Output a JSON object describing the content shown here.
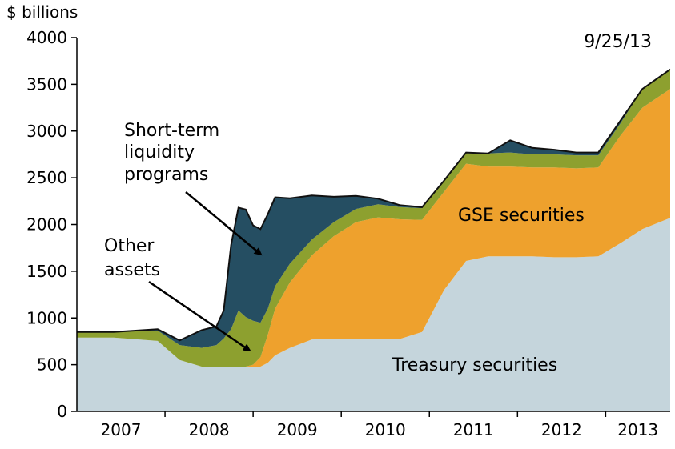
{
  "chart_data": {
    "type": "area",
    "unit_label": "$ billions",
    "date_stamp": "9/25/13",
    "ylim": [
      0,
      4000
    ],
    "yticks": [
      "0",
      "500",
      "1000",
      "1500",
      "2000",
      "2500",
      "3000",
      "3500",
      "4000"
    ],
    "x_labels": [
      "2007",
      "2008",
      "2009",
      "2010",
      "2011",
      "2012",
      "2013"
    ],
    "xlim": [
      "2007-01",
      "2013-09-25"
    ],
    "x": [
      "2007-01",
      "2007-06",
      "2007-12",
      "2008-03",
      "2008-06",
      "2008-08",
      "2008-09",
      "2008-10",
      "2008-11",
      "2008-12",
      "2009-01",
      "2009-02",
      "2009-03",
      "2009-04",
      "2009-06",
      "2009-09",
      "2009-12",
      "2010-03",
      "2010-06",
      "2010-09",
      "2010-12",
      "2011-03",
      "2011-06",
      "2011-09",
      "2011-12",
      "2012-03",
      "2012-06",
      "2012-09",
      "2012-12",
      "2013-03",
      "2013-06",
      "2013-09-25"
    ],
    "series": [
      {
        "name": "Treasury securities",
        "color": "#c5d5dc",
        "values": [
          790,
          790,
          755,
          550,
          480,
          480,
          480,
          480,
          480,
          480,
          480,
          480,
          520,
          600,
          680,
          770,
          776,
          776,
          776,
          776,
          850,
          1300,
          1610,
          1660,
          1660,
          1660,
          1650,
          1650,
          1660,
          1800,
          1950,
          2070
        ]
      },
      {
        "name": "GSE securities",
        "color": "#eea12d",
        "values": [
          0,
          0,
          0,
          0,
          0,
          0,
          0,
          0,
          0,
          0,
          20,
          100,
          300,
          500,
          700,
          900,
          1100,
          1250,
          1300,
          1280,
          1200,
          1050,
          1040,
          960,
          960,
          950,
          960,
          950,
          950,
          1150,
          1300,
          1380
        ]
      },
      {
        "name": "Other assets",
        "color": "#8da02f",
        "values": [
          60,
          60,
          110,
          160,
          200,
          230,
          300,
          400,
          600,
          530,
          470,
          370,
          280,
          240,
          200,
          170,
          150,
          140,
          140,
          130,
          125,
          120,
          120,
          140,
          150,
          140,
          140,
          140,
          130,
          130,
          200,
          210
        ]
      },
      {
        "name": "Short-term liquidity programs",
        "color": "#254e62",
        "values": [
          0,
          0,
          15,
          50,
          190,
          200,
          300,
          900,
          1100,
          1150,
          1020,
          1000,
          1010,
          950,
          700,
          470,
          270,
          140,
          60,
          20,
          10,
          0,
          0,
          0,
          130,
          70,
          50,
          30,
          30,
          30,
          0,
          0
        ]
      }
    ],
    "annotations": [
      {
        "text": [
          "Short-term",
          "liquidity",
          "programs"
        ],
        "target_series": "Short-term liquidity programs"
      },
      {
        "text": [
          "Other",
          "assets"
        ],
        "target_series": "Other assets"
      },
      {
        "text": [
          "GSE securities"
        ],
        "target_series": "GSE securities"
      },
      {
        "text": [
          "Treasury securities"
        ],
        "target_series": "Treasury securities"
      }
    ],
    "grid": false,
    "legend": "none"
  }
}
